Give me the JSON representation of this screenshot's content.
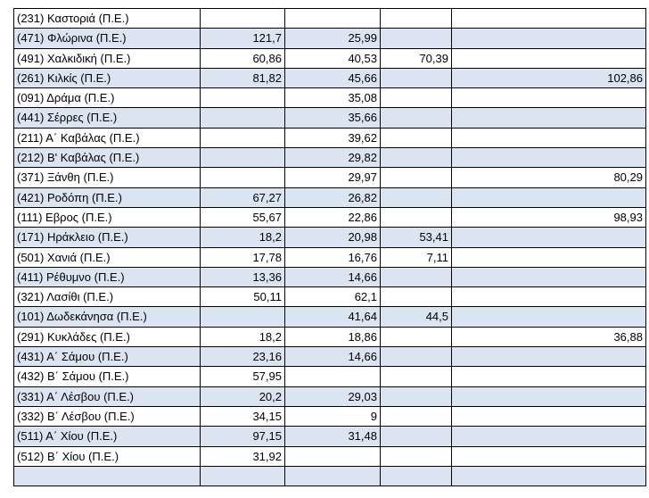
{
  "table": {
    "rows": [
      [
        "(231) Καστοριά (Π.Ε.)",
        "",
        "",
        "",
        ""
      ],
      [
        "(471) Φλώρινα (Π.Ε.)",
        "121,7",
        "25,99",
        "",
        ""
      ],
      [
        "(491) Χαλκιδική (Π.Ε.)",
        "60,86",
        "40,53",
        "70,39",
        ""
      ],
      [
        "(261) Κιλκίς (Π.Ε.)",
        "81,82",
        "45,66",
        "",
        "102,86"
      ],
      [
        "(091) Δράμα (Π.Ε.)",
        "",
        "35,08",
        "",
        ""
      ],
      [
        "(441) Σέρρες (Π.Ε.)",
        "",
        "35,66",
        "",
        ""
      ],
      [
        "(211) Α΄ Καβάλας (Π.Ε.)",
        "",
        "39,62",
        "",
        ""
      ],
      [
        "(212) Β' Καβάλας (Π.Ε.)",
        "",
        "29,82",
        "",
        ""
      ],
      [
        "(371) Ξάνθη (Π.Ε.)",
        "",
        "29,97",
        "",
        "80,29"
      ],
      [
        "(421) Ροδόπη (Π.Ε.)",
        "67,27",
        "26,82",
        "",
        ""
      ],
      [
        "(111) Εβρος (Π.Ε.)",
        "55,67",
        "22,86",
        "",
        "98,93"
      ],
      [
        "(171) Ηράκλειο (Π.Ε.)",
        "18,2",
        "20,98",
        "53,41",
        ""
      ],
      [
        "(501) Χανιά (Π.Ε.)",
        "17,78",
        "16,76",
        "7,11",
        ""
      ],
      [
        "(411) Ρέθυμνο (Π.Ε.)",
        "13,36",
        "14,66",
        "",
        ""
      ],
      [
        "(321) Λασίθι (Π.Ε.)",
        "50,11",
        "62,1",
        "",
        ""
      ],
      [
        "(101) Δωδεκάνησα (Π.Ε.)",
        "",
        "41,64",
        "44,5",
        ""
      ],
      [
        "(291) Κυκλάδες (Π.Ε.)",
        "18,2",
        "18,86",
        "",
        "36,88"
      ],
      [
        "(431) Α΄ Σάμου (Π.Ε.)",
        "23,16",
        "14,66",
        "",
        ""
      ],
      [
        "(432) Β΄ Σάμου (Π.Ε.)",
        "57,95",
        "",
        "",
        ""
      ],
      [
        "(331) Α΄ Λέσβου (Π.Ε.)",
        "20,2",
        "29,03",
        "",
        ""
      ],
      [
        "(332) Β΄ Λέσβου (Π.Ε.)",
        "34,15",
        "9",
        "",
        ""
      ],
      [
        "(511) Α΄ Χίου (Π.Ε.)",
        "97,15",
        "31,48",
        "",
        ""
      ],
      [
        "(512) Β΄ Χίου (Π.Ε.)",
        "31,92",
        "",
        "",
        ""
      ],
      [
        "",
        "",
        "",
        "",
        ""
      ]
    ]
  },
  "colors": {
    "row_shade": "#dbe4f1",
    "row_plain": "#ffffff",
    "border": "#000000"
  }
}
